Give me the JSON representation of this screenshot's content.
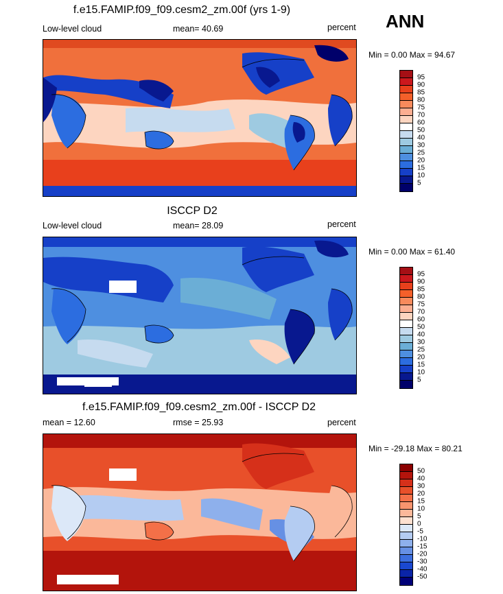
{
  "season": "ANN",
  "panels": [
    {
      "title": "f.e15.FAMIP.f09_f09.cesm2_zm.00f (yrs 1-9)",
      "left_label": "Low-level cloud",
      "center_label": "mean=  40.69",
      "right_label": "percent",
      "minmax": "Min =   0.00 Max =  94.67",
      "levels": [
        "95",
        "90",
        "85",
        "80",
        "75",
        "70",
        "60",
        "50",
        "40",
        "30",
        "25",
        "20",
        "15",
        "10",
        "5"
      ],
      "colors": [
        "#a50f15",
        "#cb181d",
        "#e8401c",
        "#f4602a",
        "#f88a5c",
        "#fcae91",
        "#fdd5c0",
        "#ffffff",
        "#c6dbef",
        "#9ecae1",
        "#6baed6",
        "#4e8fe0",
        "#2c6de0",
        "#1640c8",
        "#08188f",
        "#00006a"
      ],
      "base_color": "#f0703c"
    },
    {
      "title": "ISCCP D2",
      "left_label": "Low-level cloud",
      "center_label": "mean=  28.09",
      "right_label": "percent",
      "minmax": "Min =   0.00 Max =  61.40",
      "levels": [
        "95",
        "90",
        "85",
        "80",
        "75",
        "70",
        "60",
        "50",
        "40",
        "30",
        "25",
        "20",
        "15",
        "10",
        "5"
      ],
      "colors": [
        "#a50f15",
        "#cb181d",
        "#e8401c",
        "#f4602a",
        "#f88a5c",
        "#fcae91",
        "#fdd5c0",
        "#ffffff",
        "#c6dbef",
        "#9ecae1",
        "#6baed6",
        "#4e8fe0",
        "#2c6de0",
        "#1640c8",
        "#08188f",
        "#00006a"
      ],
      "base_color": "#5b8fe8"
    },
    {
      "title": "f.e15.FAMIP.f09_f09.cesm2_zm.00f - ISCCP D2",
      "left_label": "mean =  12.60",
      "center_label": "rmse =  25.93",
      "right_label": "percent",
      "minmax": "Min = -29.18 Max =  80.21",
      "levels": [
        "50",
        "40",
        "30",
        "20",
        "15",
        "10",
        "5",
        "0",
        "-5",
        "-10",
        "-15",
        "-20",
        "-30",
        "-40",
        "-50"
      ],
      "colors": [
        "#8b0000",
        "#b3140c",
        "#d6301a",
        "#e8502a",
        "#f47048",
        "#f8946e",
        "#fbb89a",
        "#fde0d0",
        "#dce8f8",
        "#b4ccf2",
        "#8eb0ec",
        "#6690e4",
        "#3c6ede",
        "#1a48d0",
        "#0a24a8",
        "#000078"
      ],
      "base_color": "#e4502c"
    }
  ]
}
